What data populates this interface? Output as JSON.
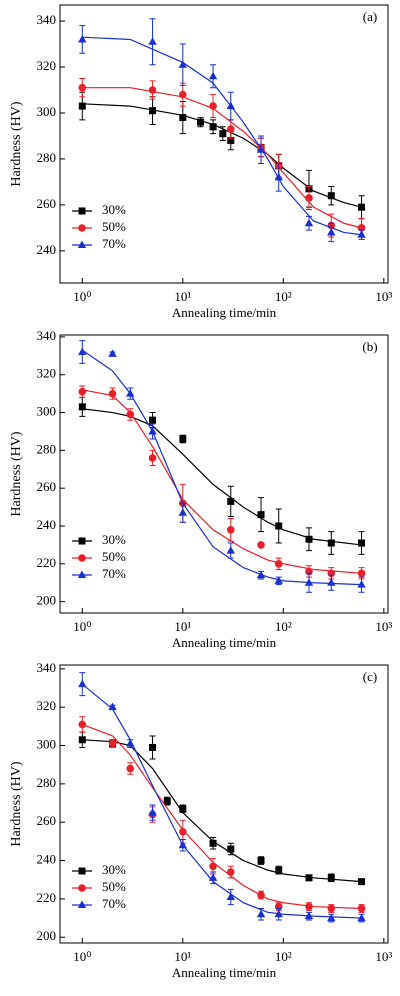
{
  "chart_data": [
    {
      "type": "scatter",
      "annotation": "(a)",
      "x_label": "Annealing time/min",
      "y_label": "Hardness (HV)",
      "xscale": "log",
      "xlim": [
        0.6,
        1100
      ],
      "xticks": [
        {
          "value": 1,
          "label": "10⁰"
        },
        {
          "value": 10,
          "label": "10¹"
        },
        {
          "value": 100,
          "label": "10²"
        },
        {
          "value": 1000,
          "label": "10³"
        }
      ],
      "ylim": [
        226,
        347
      ],
      "yticks": [
        240,
        260,
        280,
        300,
        320,
        340
      ],
      "legend": "lower left",
      "fit_x": [
        1,
        3,
        10,
        20,
        40,
        70,
        100,
        200,
        400,
        600
      ],
      "series": [
        {
          "name": "30%",
          "color": "#000000",
          "marker": "square",
          "x": [
            1,
            5,
            10,
            15,
            20,
            25,
            30,
            60,
            90,
            180,
            300,
            600
          ],
          "values": [
            303,
            301,
            298,
            296,
            294,
            291,
            288,
            285,
            277,
            267,
            264,
            259
          ],
          "errors": [
            6,
            6,
            7,
            2,
            3,
            3,
            4,
            4,
            5,
            8,
            4,
            5
          ],
          "fit": [
            304,
            303,
            299,
            295,
            289,
            282,
            276,
            266,
            261,
            259
          ]
        },
        {
          "name": "50%",
          "color": "#e8202a",
          "marker": "circle",
          "x": [
            1,
            5,
            10,
            20,
            30,
            60,
            90,
            180,
            300,
            600
          ],
          "values": [
            311,
            310,
            308,
            303,
            293,
            285,
            277,
            263,
            251,
            250
          ],
          "errors": [
            4,
            4,
            5,
            5,
            4,
            4,
            5,
            5,
            5,
            4
          ],
          "fit": [
            311,
            311,
            307,
            302,
            292,
            282,
            274,
            259,
            252,
            250
          ]
        },
        {
          "name": "70%",
          "color": "#1a2fd0",
          "marker": "triangle",
          "x": [
            1,
            5,
            10,
            20,
            30,
            60,
            90,
            180,
            300,
            600
          ],
          "values": [
            332,
            331,
            321,
            316,
            303,
            284,
            272,
            252,
            248,
            247
          ],
          "errors": [
            6,
            10,
            9,
            5,
            6,
            6,
            6,
            3,
            4,
            2
          ],
          "fit": [
            333,
            332,
            322,
            313,
            296,
            280,
            268,
            253,
            248,
            247
          ]
        }
      ]
    },
    {
      "type": "scatter",
      "annotation": "(b)",
      "x_label": "Annealing time/min",
      "y_label": "Hardness (HV)",
      "xscale": "log",
      "xlim": [
        0.6,
        1100
      ],
      "xticks": [
        {
          "value": 1,
          "label": "10⁰"
        },
        {
          "value": 10,
          "label": "10¹"
        },
        {
          "value": 100,
          "label": "10²"
        },
        {
          "value": 1000,
          "label": "10³"
        }
      ],
      "ylim": [
        194,
        341
      ],
      "yticks": [
        200,
        220,
        240,
        260,
        280,
        300,
        320,
        340
      ],
      "legend": "lower left",
      "fit_x": [
        1,
        2,
        3,
        5,
        10,
        20,
        40,
        70,
        100,
        200,
        600
      ],
      "series": [
        {
          "name": "30%",
          "color": "#000000",
          "marker": "square",
          "x": [
            1,
            5,
            10,
            30,
            60,
            90,
            180,
            300,
            600
          ],
          "values": [
            303,
            296,
            286,
            253,
            246,
            240,
            233,
            231,
            231
          ],
          "errors": [
            5,
            4,
            2,
            8,
            9,
            9,
            6,
            6,
            6
          ],
          "fit": [
            302,
            300,
            298,
            293,
            278,
            262,
            250,
            242,
            238,
            233,
            230
          ]
        },
        {
          "name": "50%",
          "color": "#e8202a",
          "marker": "circle",
          "x": [
            1,
            2,
            3,
            5,
            10,
            30,
            60,
            90,
            180,
            300,
            600
          ],
          "values": [
            311,
            310,
            299,
            276,
            252,
            238,
            230,
            220,
            216,
            215,
            215
          ],
          "errors": [
            3,
            3,
            3,
            4,
            10,
            6,
            0,
            3,
            3,
            3,
            3
          ],
          "fit": [
            312,
            309,
            300,
            282,
            254,
            238,
            228,
            222,
            220,
            217,
            215
          ]
        },
        {
          "name": "70%",
          "color": "#1a2fd0",
          "marker": "triangle",
          "x": [
            1,
            2,
            3,
            5,
            10,
            30,
            60,
            90,
            180,
            300,
            600
          ],
          "values": [
            332,
            331,
            310,
            290,
            247,
            227,
            214,
            211,
            210,
            210,
            209
          ],
          "errors": [
            6,
            1,
            3,
            4,
            5,
            4,
            2,
            2,
            5,
            4,
            4
          ],
          "fit": [
            333,
            322,
            310,
            290,
            252,
            229,
            218,
            213,
            211,
            210,
            209
          ]
        }
      ]
    },
    {
      "type": "scatter",
      "annotation": "(c)",
      "x_label": "Annealing time/min",
      "y_label": "Hardness (HV)",
      "xscale": "log",
      "xlim": [
        0.6,
        1100
      ],
      "xticks": [
        {
          "value": 1,
          "label": "10⁰"
        },
        {
          "value": 10,
          "label": "10¹"
        },
        {
          "value": 100,
          "label": "10²"
        },
        {
          "value": 1000,
          "label": "10³"
        }
      ],
      "ylim": [
        197,
        342
      ],
      "yticks": [
        200,
        220,
        240,
        260,
        280,
        300,
        320,
        340
      ],
      "legend": "lower left",
      "fit_x": [
        1,
        2,
        3,
        5,
        10,
        20,
        40,
        70,
        100,
        200,
        600
      ],
      "series": [
        {
          "name": "30%",
          "color": "#000000",
          "marker": "square",
          "x": [
            1,
            2,
            5,
            7,
            10,
            20,
            30,
            60,
            90,
            180,
            300,
            600
          ],
          "values": [
            303,
            301,
            299,
            271,
            267,
            249,
            246,
            240,
            235,
            231,
            231,
            229
          ],
          "errors": [
            4,
            2,
            6,
            2,
            2,
            3,
            3,
            2,
            2,
            1,
            2,
            1
          ],
          "fit": [
            303,
            302,
            300,
            288,
            265,
            250,
            240,
            235,
            233,
            231,
            229
          ]
        },
        {
          "name": "50%",
          "color": "#e8202a",
          "marker": "circle",
          "x": [
            1,
            2,
            3,
            5,
            10,
            20,
            30,
            60,
            90,
            180,
            300,
            600
          ],
          "values": [
            311,
            301,
            288,
            264,
            255,
            237,
            234,
            222,
            216,
            216,
            215,
            215
          ],
          "errors": [
            4,
            2,
            3,
            4,
            6,
            4,
            3,
            2,
            2,
            2,
            2,
            2
          ],
          "fit": [
            311,
            305,
            295,
            278,
            256,
            239,
            227,
            220,
            218,
            216,
            215
          ]
        },
        {
          "name": "70%",
          "color": "#1a2fd0",
          "marker": "triangle",
          "x": [
            1,
            2,
            3,
            5,
            10,
            20,
            30,
            60,
            90,
            180,
            300,
            600
          ],
          "values": [
            332,
            320,
            301,
            265,
            248,
            231,
            221,
            212,
            212,
            211,
            210,
            210
          ],
          "errors": [
            6,
            1,
            2,
            4,
            3,
            3,
            4,
            3,
            3,
            2,
            2,
            2
          ],
          "fit": [
            332,
            319,
            303,
            279,
            248,
            229,
            218,
            213,
            212,
            211,
            210
          ]
        }
      ]
    }
  ]
}
